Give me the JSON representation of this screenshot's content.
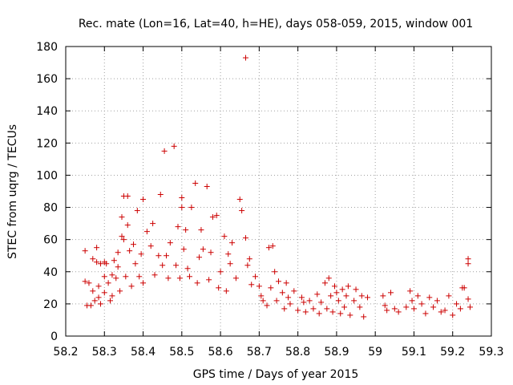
{
  "chart_data": {
    "type": "scatter",
    "title": "Rec. mate (Lon=16, Lat=40, h=HE), days 058-059, 2015, window 001",
    "xlabel": "GPS time / Days of year 2015",
    "ylabel": "STEC from uqrg / TECUs",
    "xlim": [
      58.2,
      59.3
    ],
    "ylim": [
      0,
      180
    ],
    "xticks": [
      "58.2",
      "58.3",
      "58.4",
      "58.5",
      "58.6",
      "58.7",
      "58.8",
      "58.9",
      "59",
      "59.1",
      "59.2",
      "59.3"
    ],
    "yticks": [
      "0",
      "20",
      "40",
      "60",
      "80",
      "100",
      "120",
      "140",
      "160",
      "180"
    ],
    "grid": true,
    "marker": "+",
    "series": [
      {
        "color": "#cc0000",
        "points": [
          [
            58.25,
            53
          ],
          [
            58.25,
            34
          ],
          [
            58.255,
            19
          ],
          [
            58.26,
            33
          ],
          [
            58.265,
            19
          ],
          [
            58.27,
            48
          ],
          [
            58.27,
            28
          ],
          [
            58.275,
            22
          ],
          [
            58.28,
            55
          ],
          [
            58.28,
            46
          ],
          [
            58.285,
            31
          ],
          [
            58.285,
            24
          ],
          [
            58.29,
            45
          ],
          [
            58.29,
            20
          ],
          [
            58.3,
            46
          ],
          [
            58.3,
            37
          ],
          [
            58.3,
            27
          ],
          [
            58.305,
            45
          ],
          [
            58.31,
            33
          ],
          [
            58.315,
            22
          ],
          [
            58.32,
            38
          ],
          [
            58.32,
            25
          ],
          [
            58.325,
            47
          ],
          [
            58.33,
            36
          ],
          [
            58.335,
            52
          ],
          [
            58.335,
            43
          ],
          [
            58.34,
            28
          ],
          [
            58.345,
            62
          ],
          [
            58.345,
            74
          ],
          [
            58.35,
            87
          ],
          [
            58.35,
            60
          ],
          [
            58.355,
            37
          ],
          [
            58.36,
            69
          ],
          [
            58.36,
            87
          ],
          [
            58.365,
            53
          ],
          [
            58.37,
            31
          ],
          [
            58.375,
            57
          ],
          [
            58.38,
            45
          ],
          [
            58.385,
            78
          ],
          [
            58.39,
            37
          ],
          [
            58.395,
            51
          ],
          [
            58.4,
            85
          ],
          [
            58.4,
            33
          ],
          [
            58.41,
            65
          ],
          [
            58.42,
            56
          ],
          [
            58.425,
            70
          ],
          [
            58.43,
            38
          ],
          [
            58.44,
            50
          ],
          [
            58.445,
            88
          ],
          [
            58.45,
            44
          ],
          [
            58.455,
            115
          ],
          [
            58.46,
            50
          ],
          [
            58.465,
            36
          ],
          [
            58.47,
            58
          ],
          [
            58.48,
            118
          ],
          [
            58.485,
            44
          ],
          [
            58.49,
            68
          ],
          [
            58.495,
            36
          ],
          [
            58.5,
            80
          ],
          [
            58.5,
            86
          ],
          [
            58.505,
            54
          ],
          [
            58.51,
            66
          ],
          [
            58.515,
            42
          ],
          [
            58.52,
            37
          ],
          [
            58.525,
            80
          ],
          [
            58.535,
            95
          ],
          [
            58.54,
            33
          ],
          [
            58.545,
            49
          ],
          [
            58.55,
            66
          ],
          [
            58.555,
            54
          ],
          [
            58.565,
            93
          ],
          [
            58.57,
            35
          ],
          [
            58.575,
            52
          ],
          [
            58.58,
            74
          ],
          [
            58.59,
            75
          ],
          [
            58.595,
            30
          ],
          [
            58.6,
            40
          ],
          [
            58.61,
            62
          ],
          [
            58.615,
            28
          ],
          [
            58.62,
            51
          ],
          [
            58.625,
            45
          ],
          [
            58.63,
            58
          ],
          [
            58.64,
            36
          ],
          [
            58.65,
            85
          ],
          [
            58.655,
            78
          ],
          [
            58.665,
            173
          ],
          [
            58.665,
            61
          ],
          [
            58.67,
            44
          ],
          [
            58.675,
            48
          ],
          [
            58.68,
            32
          ],
          [
            58.69,
            37
          ],
          [
            58.7,
            31
          ],
          [
            58.705,
            25
          ],
          [
            58.71,
            22
          ],
          [
            58.72,
            19
          ],
          [
            58.725,
            55
          ],
          [
            58.73,
            30
          ],
          [
            58.735,
            56
          ],
          [
            58.74,
            40
          ],
          [
            58.745,
            22
          ],
          [
            58.75,
            34
          ],
          [
            58.76,
            27
          ],
          [
            58.765,
            17
          ],
          [
            58.77,
            33
          ],
          [
            58.775,
            24
          ],
          [
            58.78,
            20
          ],
          [
            58.79,
            28
          ],
          [
            58.8,
            16
          ],
          [
            58.81,
            24
          ],
          [
            58.815,
            21
          ],
          [
            58.82,
            15
          ],
          [
            58.83,
            22
          ],
          [
            58.84,
            17
          ],
          [
            58.85,
            26
          ],
          [
            58.855,
            14
          ],
          [
            58.86,
            21
          ],
          [
            58.87,
            33
          ],
          [
            58.875,
            17
          ],
          [
            58.88,
            36
          ],
          [
            58.885,
            25
          ],
          [
            58.89,
            15
          ],
          [
            58.895,
            31
          ],
          [
            58.9,
            27
          ],
          [
            58.905,
            22
          ],
          [
            58.91,
            14
          ],
          [
            58.915,
            29
          ],
          [
            58.92,
            18
          ],
          [
            58.925,
            25
          ],
          [
            58.93,
            31
          ],
          [
            58.935,
            13
          ],
          [
            58.945,
            22
          ],
          [
            58.95,
            29
          ],
          [
            58.96,
            18
          ],
          [
            58.965,
            25
          ],
          [
            58.97,
            12
          ],
          [
            58.98,
            24
          ],
          [
            59.02,
            25
          ],
          [
            59.025,
            19
          ],
          [
            59.03,
            16
          ],
          [
            59.04,
            27
          ],
          [
            59.05,
            17
          ],
          [
            59.06,
            15
          ],
          [
            59.08,
            18
          ],
          [
            59.09,
            28
          ],
          [
            59.095,
            22
          ],
          [
            59.1,
            17
          ],
          [
            59.11,
            25
          ],
          [
            59.12,
            20
          ],
          [
            59.13,
            14
          ],
          [
            59.14,
            24
          ],
          [
            59.15,
            18
          ],
          [
            59.16,
            22
          ],
          [
            59.17,
            15
          ],
          [
            59.18,
            16
          ],
          [
            59.19,
            25
          ],
          [
            59.2,
            13
          ],
          [
            59.21,
            20
          ],
          [
            59.22,
            17
          ],
          [
            59.225,
            30
          ],
          [
            59.23,
            30
          ],
          [
            59.24,
            48
          ],
          [
            59.24,
            45
          ],
          [
            59.24,
            23
          ],
          [
            59.245,
            18
          ]
        ]
      }
    ]
  }
}
